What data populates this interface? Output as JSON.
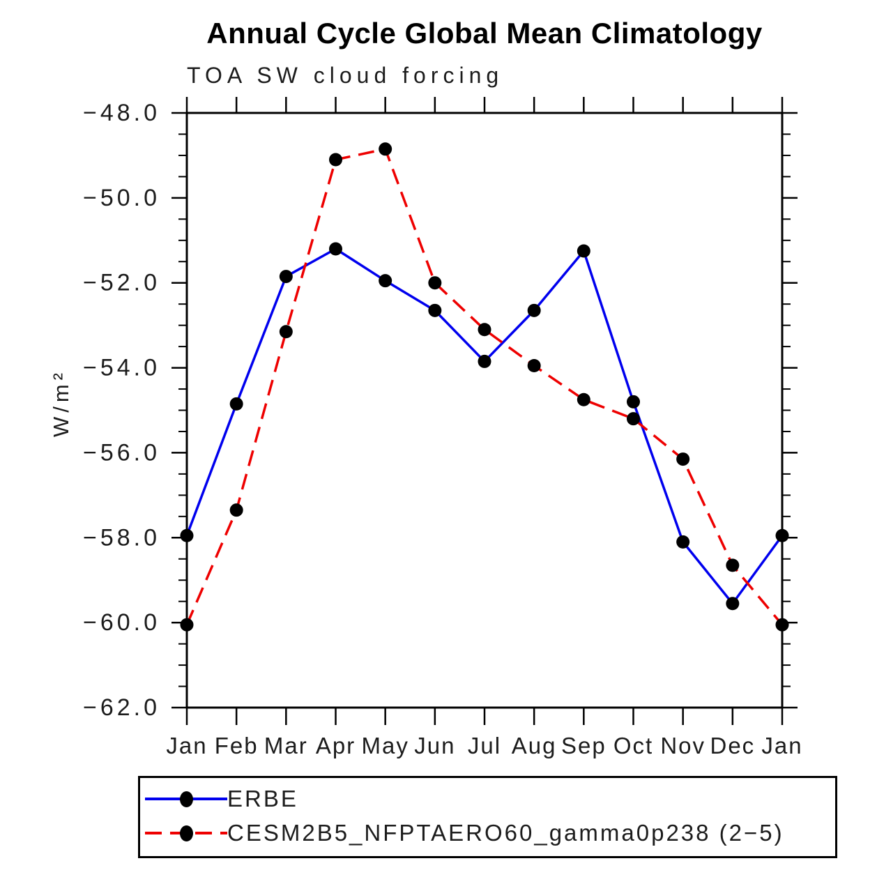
{
  "chart_data": {
    "type": "line",
    "title": "Annual Cycle Global Mean Climatology",
    "subtitle": "TOA SW cloud forcing",
    "ylabel": "W/m²",
    "x_categories": [
      "Jan",
      "Feb",
      "Mar",
      "Apr",
      "May",
      "Jun",
      "Jul",
      "Aug",
      "Sep",
      "Oct",
      "Nov",
      "Dec",
      "Jan"
    ],
    "ylim": [
      -62.0,
      -48.0
    ],
    "ytick_major_interval": 2.0,
    "ytick_minor_interval": 0.5,
    "yticks": [
      {
        "value": -48.0,
        "label": "−48.0"
      },
      {
        "value": -50.0,
        "label": "−50.0"
      },
      {
        "value": -52.0,
        "label": "−52.0"
      },
      {
        "value": -54.0,
        "label": "−54.0"
      },
      {
        "value": -56.0,
        "label": "−56.0"
      },
      {
        "value": -58.0,
        "label": "−58.0"
      },
      {
        "value": -60.0,
        "label": "−60.0"
      },
      {
        "value": -62.0,
        "label": "−62.0"
      }
    ],
    "grid": false,
    "legend_position": "bottom-left boxed",
    "series": [
      {
        "name": "ERBE",
        "line_color": "#0000ee",
        "line_style": "solid",
        "marker": "filled-circle",
        "marker_color": "#000000",
        "values": [
          -57.95,
          -54.85,
          -51.85,
          -51.2,
          -51.95,
          -52.65,
          -53.85,
          -52.65,
          -51.25,
          -54.8,
          -58.1,
          -59.55,
          -57.95
        ]
      },
      {
        "name": "CESM2B5_NFPTAERO60_gamma0p238 (2−5)",
        "line_color": "#ee0000",
        "line_style": "dashed",
        "marker": "filled-circle",
        "marker_color": "#000000",
        "values": [
          -60.05,
          -57.35,
          -53.15,
          -49.1,
          -48.85,
          -52.0,
          -53.1,
          -53.95,
          -54.75,
          -55.2,
          -56.15,
          -58.65,
          -60.05
        ]
      }
    ]
  }
}
